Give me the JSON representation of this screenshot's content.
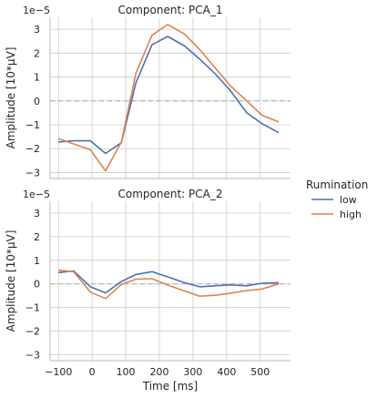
{
  "chart_data": {
    "type": "line",
    "legend": {
      "title": "Rumination",
      "placement": "right",
      "entries": [
        {
          "name": "low",
          "color": "#4c72b0"
        },
        {
          "name": "high",
          "color": "#dd8452"
        }
      ]
    },
    "xlabel": "Time [ms]",
    "xlim": [
      -125,
      590
    ],
    "xticks": [
      "−100",
      "0",
      "100",
      "200",
      "300",
      "400",
      "500"
    ],
    "xtick_values": [
      -100,
      0,
      100,
      200,
      300,
      400,
      500
    ],
    "ylabel": "Amplitude [10*µV]",
    "y_scale_label": "1e−5",
    "ylim": [
      -3.25,
      3.5
    ],
    "yticks": [
      "−3",
      "−2",
      "−1",
      "0",
      "1",
      "2",
      "3"
    ],
    "ytick_values": [
      -3,
      -2,
      -1,
      0,
      1,
      2,
      3
    ],
    "reference_line": 0,
    "grid": true,
    "panels": [
      {
        "title": "Component: PCA_1",
        "series": [
          {
            "name": "low",
            "color": "#4c72b0",
            "x": [
              -100,
              -55,
              -5,
              40,
              87,
              130,
              178,
              225,
              275,
              320,
              365,
              410,
              460,
              505,
              555
            ],
            "y": [
              -1.72,
              -1.67,
              -1.67,
              -2.2,
              -1.75,
              0.75,
              2.35,
              2.7,
              2.3,
              1.75,
              1.15,
              0.45,
              -0.5,
              -0.95,
              -1.33
            ]
          },
          {
            "name": "high",
            "color": "#dd8452",
            "x": [
              -100,
              -55,
              -5,
              40,
              87,
              130,
              178,
              225,
              275,
              320,
              365,
              410,
              460,
              505,
              555
            ],
            "y": [
              -1.58,
              -1.8,
              -2.05,
              -2.93,
              -1.72,
              1.15,
              2.75,
              3.2,
              2.8,
              2.15,
              1.4,
              0.65,
              0.0,
              -0.6,
              -0.88
            ]
          }
        ]
      },
      {
        "title": "Component: PCA_2",
        "series": [
          {
            "name": "low",
            "color": "#4c72b0",
            "x": [
              -100,
              -55,
              -5,
              40,
              87,
              130,
              178,
              225,
              275,
              320,
              365,
              410,
              460,
              505,
              555
            ],
            "y": [
              0.48,
              0.55,
              -0.12,
              -0.38,
              0.1,
              0.4,
              0.52,
              0.3,
              0.05,
              -0.12,
              -0.08,
              -0.04,
              -0.08,
              0.03,
              0.05
            ]
          },
          {
            "name": "high",
            "color": "#dd8452",
            "x": [
              -100,
              -55,
              -5,
              40,
              87,
              130,
              178,
              225,
              275,
              320,
              365,
              410,
              460,
              505,
              555
            ],
            "y": [
              0.58,
              0.52,
              -0.35,
              -0.62,
              -0.02,
              0.2,
              0.22,
              -0.05,
              -0.3,
              -0.52,
              -0.48,
              -0.4,
              -0.28,
              -0.22,
              0.0
            ]
          }
        ]
      }
    ]
  }
}
